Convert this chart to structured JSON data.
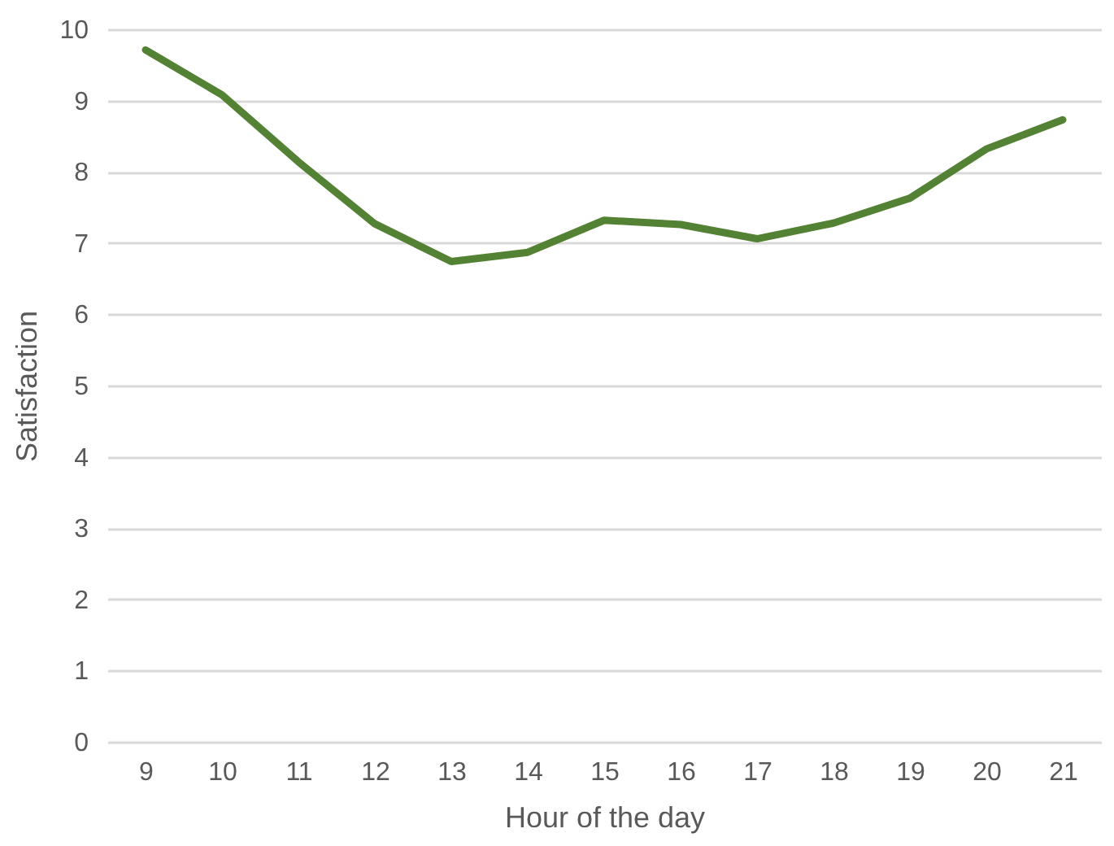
{
  "chart_data": {
    "type": "line",
    "xlabel": "Hour of the day",
    "ylabel": "Satisfaction",
    "categories": [
      "9",
      "10",
      "11",
      "12",
      "13",
      "14",
      "15",
      "16",
      "17",
      "18",
      "19",
      "20",
      "21"
    ],
    "series": [
      {
        "color": "#548235",
        "values": [
          9.71,
          9.08,
          8.14,
          7.27,
          6.74,
          6.87,
          7.32,
          7.26,
          7.06,
          7.28,
          7.63,
          8.32,
          8.73
        ]
      }
    ],
    "ylim": [
      0,
      10
    ],
    "yticks": [
      0,
      1,
      2,
      3,
      4,
      5,
      6,
      7,
      8,
      9,
      10
    ],
    "grid": "y",
    "marker": "none",
    "line_style": "solid"
  }
}
